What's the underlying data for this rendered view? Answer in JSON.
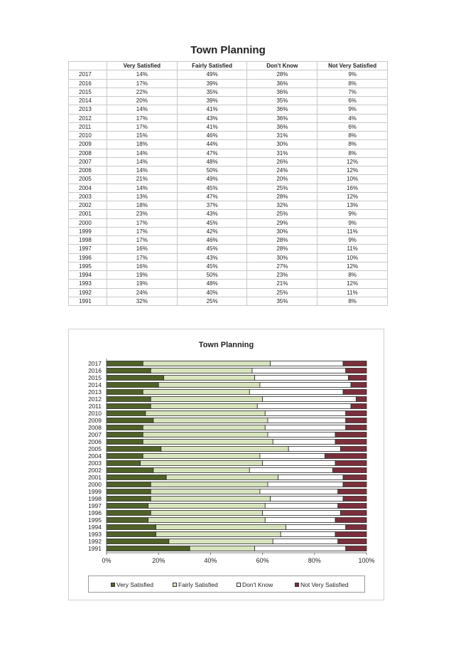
{
  "page_title": "Town Planning",
  "table": {
    "corner": "",
    "headers": [
      "Very Satisfied",
      "Fairly Satisfied",
      "Don't Know",
      "Not Very Satisfied"
    ],
    "rows": [
      {
        "year": "2017",
        "cells": [
          "14%",
          "49%",
          "28%",
          "9%"
        ]
      },
      {
        "year": "2016",
        "cells": [
          "17%",
          "39%",
          "36%",
          "8%"
        ]
      },
      {
        "year": "2015",
        "cells": [
          "22%",
          "35%",
          "36%",
          "7%"
        ]
      },
      {
        "year": "2014",
        "cells": [
          "20%",
          "39%",
          "35%",
          "6%"
        ]
      },
      {
        "year": "2013",
        "cells": [
          "14%",
          "41%",
          "36%",
          "9%"
        ]
      },
      {
        "year": "2012",
        "cells": [
          "17%",
          "43%",
          "36%",
          "4%"
        ]
      },
      {
        "year": "2011",
        "cells": [
          "17%",
          "41%",
          "36%",
          "6%"
        ]
      },
      {
        "year": "2010",
        "cells": [
          "15%",
          "46%",
          "31%",
          "8%"
        ]
      },
      {
        "year": "2009",
        "cells": [
          "18%",
          "44%",
          "30%",
          "8%"
        ]
      },
      {
        "year": "2008",
        "cells": [
          "14%",
          "47%",
          "31%",
          "8%"
        ]
      },
      {
        "year": "2007",
        "cells": [
          "14%",
          "48%",
          "26%",
          "12%"
        ]
      },
      {
        "year": "2006",
        "cells": [
          "14%",
          "50%",
          "24%",
          "12%"
        ]
      },
      {
        "year": "2005",
        "cells": [
          "21%",
          "49%",
          "20%",
          "10%"
        ]
      },
      {
        "year": "2004",
        "cells": [
          "14%",
          "45%",
          "25%",
          "16%"
        ]
      },
      {
        "year": "2003",
        "cells": [
          "13%",
          "47%",
          "28%",
          "12%"
        ]
      },
      {
        "year": "2002",
        "cells": [
          "18%",
          "37%",
          "32%",
          "13%"
        ]
      },
      {
        "year": "2001",
        "cells": [
          "23%",
          "43%",
          "25%",
          "9%"
        ]
      },
      {
        "year": "2000",
        "cells": [
          "17%",
          "45%",
          "29%",
          "9%"
        ]
      },
      {
        "year": "1999",
        "cells": [
          "17%",
          "42%",
          "30%",
          "11%"
        ]
      },
      {
        "year": "1998",
        "cells": [
          "17%",
          "46%",
          "28%",
          "9%"
        ]
      },
      {
        "year": "1997",
        "cells": [
          "16%",
          "45%",
          "28%",
          "11%"
        ]
      },
      {
        "year": "1996",
        "cells": [
          "17%",
          "43%",
          "30%",
          "10%"
        ]
      },
      {
        "year": "1995",
        "cells": [
          "16%",
          "45%",
          "27%",
          "12%"
        ]
      },
      {
        "year": "1994",
        "cells": [
          "19%",
          "50%",
          "23%",
          "8%"
        ]
      },
      {
        "year": "1993",
        "cells": [
          "19%",
          "48%",
          "21%",
          "12%"
        ]
      },
      {
        "year": "1992",
        "cells": [
          "24%",
          "40%",
          "25%",
          "11%"
        ]
      },
      {
        "year": "1991",
        "cells": [
          "32%",
          "25%",
          "35%",
          "8%"
        ]
      }
    ]
  },
  "chart_data": {
    "type": "bar",
    "orientation": "horizontal",
    "stacking": "percent",
    "title": "Town Planning",
    "categories": [
      "2017",
      "2016",
      "2015",
      "2014",
      "2013",
      "2012",
      "2011",
      "2010",
      "2009",
      "2008",
      "2007",
      "2006",
      "2005",
      "2004",
      "2003",
      "2002",
      "2001",
      "2000",
      "1999",
      "1998",
      "1997",
      "1996",
      "1995",
      "1994",
      "1993",
      "1992",
      "1991"
    ],
    "series": [
      {
        "name": "Very Satisfied",
        "color": "#4f6228",
        "values": [
          14,
          17,
          22,
          20,
          14,
          17,
          17,
          15,
          18,
          14,
          14,
          14,
          21,
          14,
          13,
          18,
          23,
          17,
          17,
          17,
          16,
          17,
          16,
          19,
          19,
          24,
          32
        ]
      },
      {
        "name": "Fairly Satisfied",
        "color": "#d7e4bd",
        "values": [
          49,
          39,
          35,
          39,
          41,
          43,
          41,
          46,
          44,
          47,
          48,
          50,
          49,
          45,
          47,
          37,
          43,
          45,
          42,
          46,
          45,
          43,
          45,
          50,
          48,
          40,
          25
        ]
      },
      {
        "name": "Don't Know",
        "color": "#ffffff",
        "values": [
          28,
          36,
          36,
          35,
          36,
          36,
          36,
          31,
          30,
          31,
          26,
          24,
          20,
          25,
          28,
          32,
          25,
          29,
          30,
          28,
          28,
          30,
          27,
          23,
          21,
          25,
          35
        ]
      },
      {
        "name": "Not Very Satisfied",
        "color": "#7b2f3b",
        "values": [
          9,
          8,
          7,
          6,
          9,
          4,
          6,
          8,
          8,
          8,
          12,
          12,
          10,
          16,
          12,
          13,
          9,
          9,
          11,
          9,
          11,
          10,
          12,
          8,
          12,
          11,
          8
        ]
      }
    ],
    "x_ticks": [
      "0%",
      "20%",
      "40%",
      "60%",
      "80%",
      "100%"
    ],
    "xlim": [
      0,
      100
    ],
    "legend_position": "bottom",
    "grid": false
  }
}
